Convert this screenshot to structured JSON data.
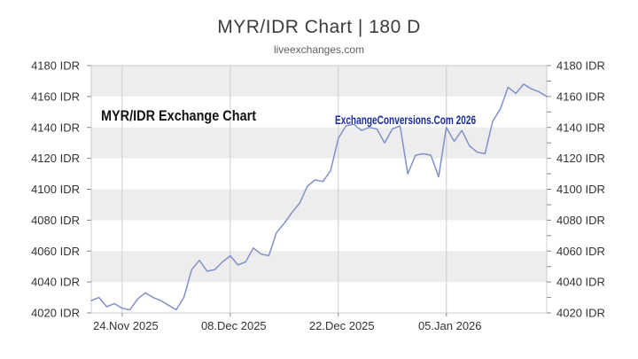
{
  "page": {
    "title": "MYR/IDR Chart | 180 D",
    "subtitle": "liveexchanges.com"
  },
  "watermarks": {
    "left": "MYR/IDR Exchange Chart",
    "right": "ExchangeConversions.Com 2026"
  },
  "chart_data": {
    "type": "line",
    "title": "MYR/IDR Chart | 180 D",
    "series_name": "MYR/IDR rate",
    "unit": "IDR",
    "legend": "none",
    "grid": true,
    "ylim": [
      4020,
      4180
    ],
    "y_ticks": [
      4020,
      4040,
      4060,
      4080,
      4100,
      4120,
      4140,
      4160,
      4180
    ],
    "y_minor_tick_step": 10,
    "y_tick_suffix": " IDR",
    "x_tick_labels": [
      "24.Nov 2025",
      "08.Dec 2025",
      "22.Dec 2025",
      "05.Jan 2026"
    ],
    "x_tick_indices": [
      4,
      18,
      32,
      46
    ],
    "dates": [
      "2025-11-20",
      "2025-11-21",
      "2025-11-22",
      "2025-11-23",
      "2025-11-24",
      "2025-11-25",
      "2025-11-26",
      "2025-11-27",
      "2025-11-28",
      "2025-11-29",
      "2025-11-30",
      "2025-12-01",
      "2025-12-02",
      "2025-12-03",
      "2025-12-04",
      "2025-12-05",
      "2025-12-06",
      "2025-12-07",
      "2025-12-08",
      "2025-12-09",
      "2025-12-10",
      "2025-12-11",
      "2025-12-12",
      "2025-12-13",
      "2025-12-14",
      "2025-12-15",
      "2025-12-16",
      "2025-12-17",
      "2025-12-18",
      "2025-12-19",
      "2025-12-20",
      "2025-12-21",
      "2025-12-22",
      "2025-12-23",
      "2025-12-24",
      "2025-12-25",
      "2025-12-26",
      "2025-12-27",
      "2025-12-28",
      "2025-12-29",
      "2025-12-30",
      "2025-12-31",
      "2026-01-01",
      "2026-01-02",
      "2026-01-03",
      "2026-01-04",
      "2026-01-05",
      "2026-01-06",
      "2026-01-07",
      "2026-01-08",
      "2026-01-09",
      "2026-01-10",
      "2026-01-11",
      "2026-01-12",
      "2026-01-13",
      "2026-01-14",
      "2026-01-15",
      "2026-01-16",
      "2026-01-17",
      "2026-01-18"
    ],
    "values": [
      4028,
      4030,
      4024,
      4026,
      4023,
      4022,
      4029,
      4033,
      4030,
      4028,
      4025,
      4022,
      4030,
      4048,
      4054,
      4047,
      4048,
      4053,
      4057,
      4051,
      4053,
      4062,
      4058,
      4057,
      4072,
      4078,
      4085,
      4091,
      4102,
      4106,
      4105,
      4112,
      4133,
      4141,
      4142,
      4138,
      4140,
      4139,
      4130,
      4139,
      4141,
      4110,
      4122,
      4123,
      4122,
      4108,
      4140,
      4131,
      4138,
      4128,
      4124,
      4123,
      4144,
      4152,
      4166,
      4162,
      4168,
      4165,
      4163,
      4160
    ],
    "colors": {
      "line": "#8090cb",
      "stripe_band": "#ededed",
      "grid": "#cccccc",
      "tick": "#888888",
      "axis_text": "#333333",
      "title_text": "#3c3c3c",
      "watermark_left": "#131313",
      "watermark_right": "#1b2c9d",
      "background": "#ffffff"
    }
  }
}
